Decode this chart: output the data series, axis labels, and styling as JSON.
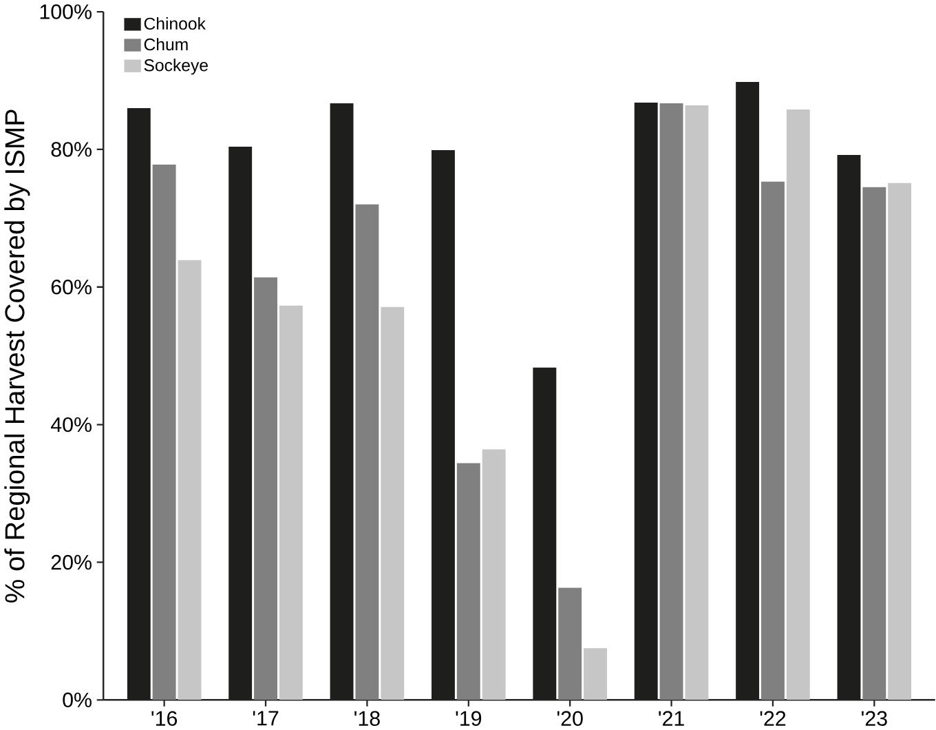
{
  "chart_data": {
    "type": "bar",
    "ylabel": "% of Regional Harvest Covered by ISMP",
    "categories": [
      "'16",
      "'17",
      "'18",
      "'19",
      "'20",
      "'21",
      "'22",
      "'23"
    ],
    "series": [
      {
        "name": "Chinook",
        "color": "#1e1e1c",
        "values": [
          86.0,
          80.4,
          86.7,
          79.9,
          48.3,
          86.8,
          89.8,
          79.2
        ]
      },
      {
        "name": "Chum",
        "color": "#808080",
        "values": [
          77.8,
          61.4,
          72.0,
          34.4,
          16.3,
          86.7,
          75.3,
          74.5
        ]
      },
      {
        "name": "Sockeye",
        "color": "#c6c6c6",
        "values": [
          63.9,
          57.3,
          57.1,
          36.4,
          7.5,
          86.4,
          85.8,
          75.1
        ]
      }
    ],
    "ylim": [
      0,
      100
    ],
    "yticks": [
      {
        "value": 0,
        "label": "0%"
      },
      {
        "value": 20,
        "label": "20%"
      },
      {
        "value": 40,
        "label": "40%"
      },
      {
        "value": 60,
        "label": "60%"
      },
      {
        "value": 80,
        "label": "80%"
      },
      {
        "value": 100,
        "label": "100%"
      }
    ],
    "legend": "top left",
    "grid": false
  }
}
